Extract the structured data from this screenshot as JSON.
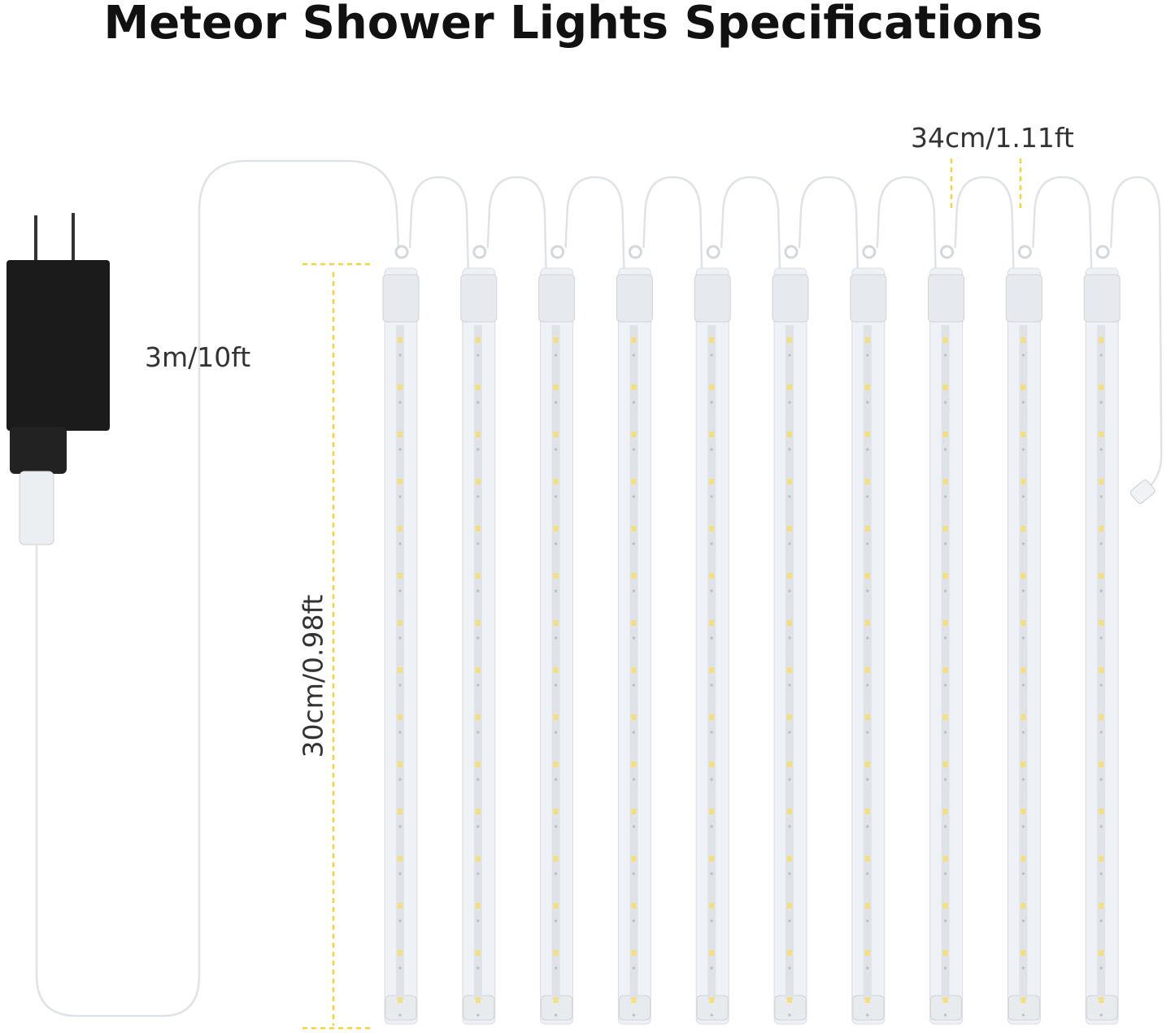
{
  "title": "Meteor Shower Lights Specifications",
  "dimensions": {
    "cable_length": "3m/10ft",
    "tube_spacing": "34cm/1.11ft",
    "tube_length": "30cm/0.98ft"
  },
  "tube_count": 10,
  "colors": {
    "dimension_line": "#f2d43a",
    "adapter": "#1b1b1b",
    "led": "#f4e07a",
    "tube": "#eef1f5"
  }
}
